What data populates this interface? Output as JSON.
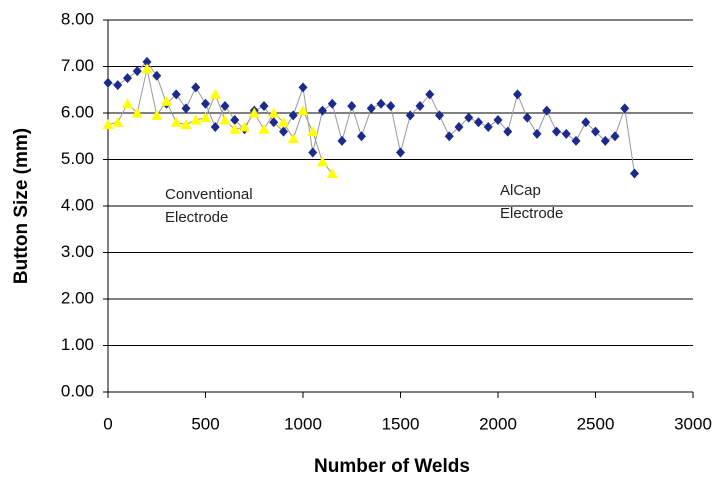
{
  "chart_data": {
    "type": "scatter",
    "x_label": "Number of Welds",
    "y_label": "Button Size (mm)",
    "xlim": [
      0,
      3000
    ],
    "xticks": [
      0,
      500,
      1000,
      1500,
      2000,
      2500,
      3000
    ],
    "ylim": [
      0,
      8
    ],
    "yticks": [
      {
        "value": 0,
        "label": "0.00"
      },
      {
        "value": 1,
        "label": "1.00"
      },
      {
        "value": 2,
        "label": "2.00"
      },
      {
        "value": 3,
        "label": "3.00"
      },
      {
        "value": 4,
        "label": "4.00"
      },
      {
        "value": 5,
        "label": "5.00"
      },
      {
        "value": 6,
        "label": "6.00"
      },
      {
        "value": 7,
        "label": "7.00"
      },
      {
        "value": 8,
        "label": "8.00"
      }
    ],
    "grid": true,
    "line_color": "#999999",
    "series": [
      {
        "color": "#1c2a8c",
        "marker": "diamond",
        "x": [
          0,
          50,
          100,
          150,
          200,
          250,
          300,
          350,
          400,
          450,
          500,
          550,
          600,
          650,
          700,
          750,
          800,
          850,
          900,
          950,
          1000,
          1050,
          1100,
          1150,
          1200,
          1250,
          1300,
          1350,
          1400,
          1450,
          1500,
          1550,
          1600,
          1650,
          1700,
          1750,
          1800,
          1850,
          1900,
          1950,
          2000,
          2050,
          2100,
          2150,
          2200,
          2250,
          2300,
          2350,
          2400,
          2450,
          2500,
          2550,
          2600,
          2650,
          2700
        ],
        "values": [
          6.65,
          6.6,
          6.75,
          6.9,
          7.1,
          6.8,
          6.2,
          6.4,
          6.1,
          6.55,
          6.2,
          5.7,
          6.15,
          5.85,
          5.65,
          6.05,
          6.15,
          5.8,
          5.6,
          5.95,
          6.55,
          5.15,
          6.05,
          6.2,
          5.4,
          6.15,
          5.5,
          6.1,
          6.2,
          6.15,
          5.15,
          5.95,
          6.15,
          6.4,
          5.95,
          5.5,
          5.7,
          5.9,
          5.8,
          5.7,
          5.85,
          5.6,
          6.4,
          5.9,
          5.55,
          6.05,
          5.6,
          5.55,
          5.4,
          5.8,
          5.6,
          5.4,
          5.5,
          6.1,
          4.7
        ]
      },
      {
        "color": "#ffff00",
        "marker": "triangle",
        "x": [
          0,
          50,
          100,
          150,
          200,
          250,
          300,
          350,
          400,
          450,
          500,
          550,
          600,
          650,
          700,
          750,
          800,
          850,
          900,
          950,
          1000,
          1050,
          1100,
          1150
        ],
        "values": [
          5.75,
          5.8,
          6.2,
          6.0,
          6.95,
          5.95,
          6.25,
          5.8,
          5.75,
          5.85,
          5.9,
          6.4,
          5.85,
          5.65,
          5.7,
          6.0,
          5.65,
          6.0,
          5.8,
          5.45,
          6.05,
          5.6,
          4.95,
          4.7
        ]
      }
    ],
    "annotations": [
      {
        "lines": [
          "Conventional",
          "Electrode"
        ]
      },
      {
        "lines": [
          "AlCap",
          "Electrode"
        ]
      }
    ]
  }
}
